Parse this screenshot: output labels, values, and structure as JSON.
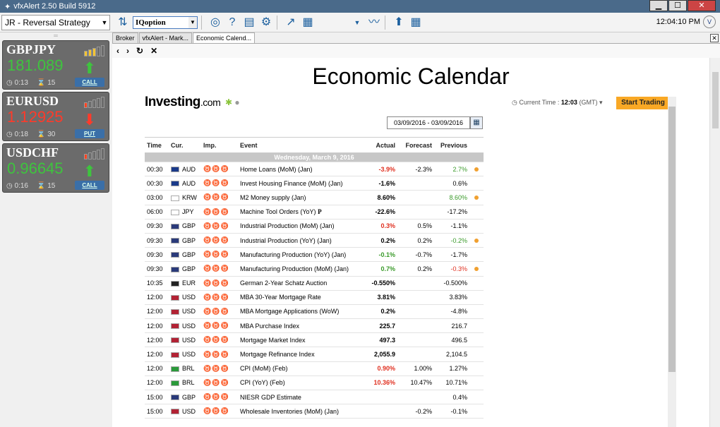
{
  "window": {
    "title": "vfxAlert 2.50 Build 5912",
    "min": "▁",
    "max": "☐",
    "close": "✕"
  },
  "toolbar": {
    "strategy": "JR - Reversal Strategy",
    "broker": "IQoption",
    "clock": "12:04:10 PM",
    "logo": "V"
  },
  "cards": [
    {
      "symbol": "GBPJPY",
      "price": "181.089",
      "direction": "up",
      "time": "0:13",
      "count": "15",
      "signal": "CALL",
      "bars": [
        3,
        4,
        5,
        6,
        7
      ],
      "active": 3,
      "bar_color": "#f4c430"
    },
    {
      "symbol": "EURUSD",
      "price": "1.12925",
      "direction": "down",
      "time": "0:18",
      "count": "30",
      "signal": "PUT",
      "bars": [
        3,
        4,
        5,
        6,
        7
      ],
      "active": 1,
      "bar_color": "#ff4422"
    },
    {
      "symbol": "USDCHF",
      "price": "0.96645",
      "direction": "up",
      "time": "0:16",
      "count": "15",
      "signal": "CALL",
      "bars": [
        3,
        4,
        5,
        6,
        7
      ],
      "active": 1,
      "bar_color": "#ff4422"
    }
  ],
  "tabs": [
    "Broker",
    "vfxAlert - Mark...",
    "Economic Calend..."
  ],
  "page": {
    "title": "Economic Calendar",
    "logo_main": "Investing",
    "logo_suffix": ".com",
    "current_time_label": "Current Time :",
    "current_time": "12:03",
    "tz": "(GMT)",
    "start_trading": "Start Trading",
    "date_range": "03/09/2016 - 03/09/2016"
  },
  "table": {
    "headers": [
      "Time",
      "Cur.",
      "Imp.",
      "Event",
      "Actual",
      "Forecast",
      "Previous"
    ],
    "day": "Wednesday, March 9, 2016",
    "rows": [
      {
        "time": "00:30",
        "cur": "AUD",
        "flag": "#1a3a8a",
        "imp": 2,
        "event": "Home Loans (MoM) (Jan)",
        "actual": "-3.9%",
        "ac": "red",
        "forecast": "-2.3%",
        "previous": "2.7%",
        "pc": "grn",
        "dot": true
      },
      {
        "time": "00:30",
        "cur": "AUD",
        "flag": "#1a3a8a",
        "imp": 1,
        "event": "Invest Housing Finance (MoM) (Jan)",
        "actual": "-1.6%",
        "ac": "",
        "forecast": "",
        "previous": "0.6%",
        "pc": "",
        "dot": false
      },
      {
        "time": "03:00",
        "cur": "KRW",
        "flag": "#ffffff",
        "imp": 1,
        "event": "M2 Money supply (Jan)",
        "actual": "8.60%",
        "ac": "",
        "forecast": "",
        "previous": "8.60%",
        "pc": "grn",
        "dot": true
      },
      {
        "time": "06:00",
        "cur": "JPY",
        "flag": "#ffffff",
        "imp": 1,
        "event": "Machine Tool Orders (YoY)",
        "actual": "-22.6%",
        "ac": "",
        "forecast": "",
        "previous": "-17.2%",
        "pc": "",
        "dot": false,
        "p": "P"
      },
      {
        "time": "09:30",
        "cur": "GBP",
        "flag": "#2a3a7a",
        "imp": 2,
        "event": "Industrial Production (MoM) (Jan)",
        "actual": "0.3%",
        "ac": "red",
        "forecast": "0.5%",
        "previous": "-1.1%",
        "pc": "",
        "dot": false
      },
      {
        "time": "09:30",
        "cur": "GBP",
        "flag": "#2a3a7a",
        "imp": 2,
        "event": "Industrial Production (YoY) (Jan)",
        "actual": "0.2%",
        "ac": "",
        "forecast": "0.2%",
        "previous": "-0.2%",
        "pc": "grn",
        "dot": true
      },
      {
        "time": "09:30",
        "cur": "GBP",
        "flag": "#2a3a7a",
        "imp": 2,
        "event": "Manufacturing Production (YoY) (Jan)",
        "actual": "-0.1%",
        "ac": "grn",
        "forecast": "-0.7%",
        "previous": "-1.7%",
        "pc": "",
        "dot": false
      },
      {
        "time": "09:30",
        "cur": "GBP",
        "flag": "#2a3a7a",
        "imp": 3,
        "event": "Manufacturing Production (MoM) (Jan)",
        "actual": "0.7%",
        "ac": "grn",
        "forecast": "0.2%",
        "previous": "-0.3%",
        "pc": "red",
        "dot": true
      },
      {
        "time": "10:35",
        "cur": "EUR",
        "flag": "#222222",
        "imp": 1,
        "event": "German 2-Year Schatz Auction",
        "actual": "-0.550%",
        "ac": "",
        "forecast": "",
        "previous": "-0.500%",
        "pc": "",
        "dot": false
      },
      {
        "time": "12:00",
        "cur": "USD",
        "flag": "#b22234",
        "imp": 1,
        "event": "MBA 30-Year Mortgage Rate",
        "actual": "3.81%",
        "ac": "",
        "forecast": "",
        "previous": "3.83%",
        "pc": "",
        "dot": false
      },
      {
        "time": "12:00",
        "cur": "USD",
        "flag": "#b22234",
        "imp": 1,
        "event": "MBA Mortgage Applications (WoW)",
        "actual": "0.2%",
        "ac": "",
        "forecast": "",
        "previous": "-4.8%",
        "pc": "",
        "dot": false
      },
      {
        "time": "12:00",
        "cur": "USD",
        "flag": "#b22234",
        "imp": 1,
        "event": "MBA Purchase Index",
        "actual": "225.7",
        "ac": "",
        "forecast": "",
        "previous": "216.7",
        "pc": "",
        "dot": false
      },
      {
        "time": "12:00",
        "cur": "USD",
        "flag": "#b22234",
        "imp": 1,
        "event": "Mortgage Market Index",
        "actual": "497.3",
        "ac": "",
        "forecast": "",
        "previous": "496.5",
        "pc": "",
        "dot": false
      },
      {
        "time": "12:00",
        "cur": "USD",
        "flag": "#b22234",
        "imp": 1,
        "event": "Mortgage Refinance Index",
        "actual": "2,055.9",
        "ac": "",
        "forecast": "",
        "previous": "2,104.5",
        "pc": "",
        "dot": false
      },
      {
        "time": "12:00",
        "cur": "BRL",
        "flag": "#2a9a3a",
        "imp": 2,
        "event": "CPI (MoM) (Feb)",
        "actual": "0.90%",
        "ac": "red",
        "forecast": "1.00%",
        "previous": "1.27%",
        "pc": "",
        "dot": false
      },
      {
        "time": "12:00",
        "cur": "BRL",
        "flag": "#2a9a3a",
        "imp": 2,
        "event": "CPI (YoY) (Feb)",
        "actual": "10.36%",
        "ac": "red",
        "forecast": "10.47%",
        "previous": "10.71%",
        "pc": "",
        "dot": false
      },
      {
        "time": "15:00",
        "cur": "GBP",
        "flag": "#2a3a7a",
        "imp": 2,
        "event": "NIESR GDP Estimate",
        "actual": "",
        "ac": "",
        "forecast": "",
        "previous": "0.4%",
        "pc": "",
        "dot": false
      },
      {
        "time": "15:00",
        "cur": "USD",
        "flag": "#b22234",
        "imp": 1,
        "event": "Wholesale Inventories (MoM) (Jan)",
        "actual": "",
        "ac": "",
        "forecast": "-0.2%",
        "previous": "-0.1%",
        "pc": "",
        "dot": false
      }
    ]
  }
}
